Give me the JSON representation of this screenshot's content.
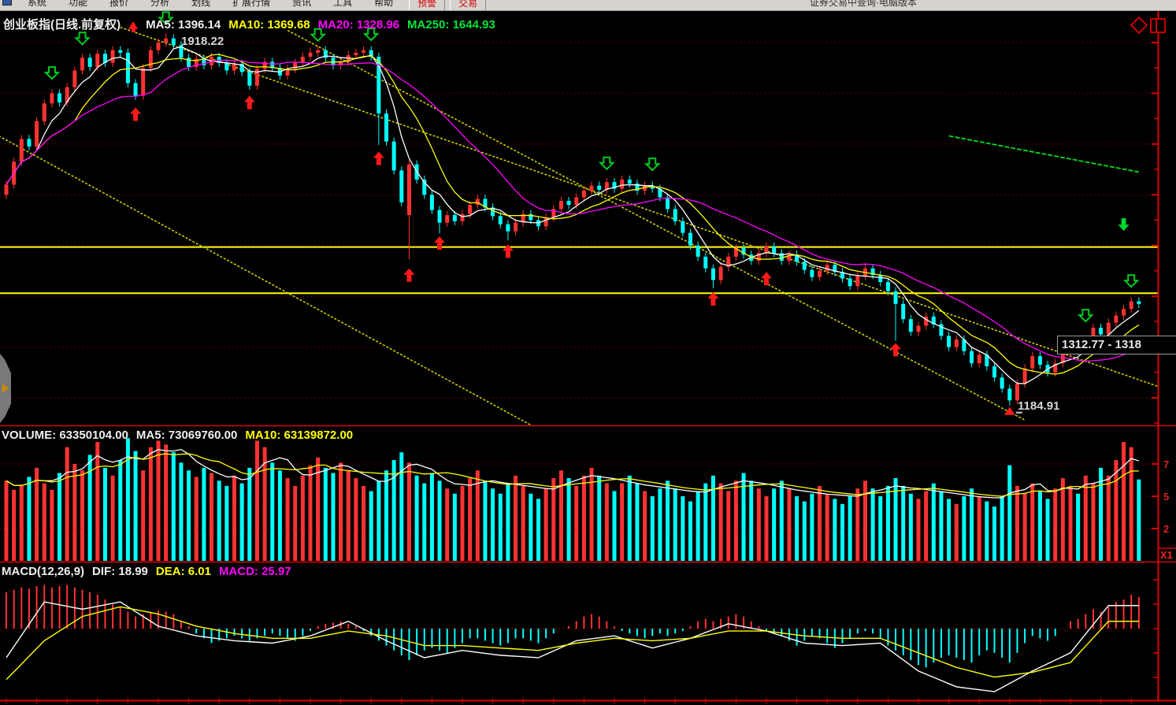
{
  "menu": {
    "items": [
      "系统",
      "功能",
      "报价",
      "分析",
      "划线",
      "扩展行情",
      "资讯",
      "工具",
      "帮助"
    ],
    "hot_items": [
      "预警",
      "交易"
    ],
    "right_text": "证券交易中查询·电脑版本"
  },
  "main_chart": {
    "header": {
      "title": "创业板指(日线.前复权)",
      "ma5": "MA5: 1396.14",
      "ma10": "MA10: 1369.68",
      "ma20": "MA20: 1328.96",
      "ma250": "MA250: 1644.93"
    },
    "peak_label": "1918.22",
    "trough_label": "1184.91",
    "tooltip": "1312.77 - 1318",
    "corner_icons": [
      "diamond-icon",
      "window-split-icon"
    ]
  },
  "volume_pane": {
    "header": {
      "volume": "VOLUME: 63350104.00",
      "ma5": "MA5: 73069760.00",
      "ma10": "MA10: 63139872.00"
    },
    "axis_labels": [
      "7",
      "5",
      "2"
    ],
    "multiplier_label": "X1"
  },
  "macd_pane": {
    "header": {
      "name": "MACD(12,26,9)",
      "dif": "DIF: 18.99",
      "dea": "DEA: 6.01",
      "macd": "MACD: 25.97"
    }
  },
  "colors": {
    "up": "#ff3232",
    "down": "#00ffff",
    "ma5": "#ffffff",
    "ma10": "#ffff00",
    "ma20": "#ff00ff",
    "ma250": "#00dd22",
    "grid": "#c80000",
    "axis": "#dd0000",
    "trend": "#cccc00",
    "support": "#ffff00",
    "signal_buy": "#ff1a1a",
    "signal_sell": "#00cc22"
  },
  "chart_data": {
    "type": "candlestick+volume+macd",
    "title": "创业板指(日线.前复权)",
    "price_axis": {
      "grid_prices": [
        1900,
        1800,
        1700,
        1600,
        1500,
        1400,
        1300,
        1200
      ],
      "labels_visible": false
    },
    "peak": {
      "index": 21,
      "price": 1918.22
    },
    "trough": {
      "index": 132,
      "price": 1184.91
    },
    "support_lines": [
      1497,
      1406
    ],
    "trendlines": [
      {
        "i1": 15,
        "p1": 1930,
        "i2": 152,
        "p2": 1220
      },
      {
        "i1": -1,
        "p1": 1716,
        "i2": 71,
        "p2": 1130
      },
      {
        "i1": 37,
        "p1": 1924,
        "i2": 134,
        "p2": 1156
      }
    ],
    "ma_periods": [
      5,
      10,
      20
    ],
    "ma250_segment": {
      "from_index": 124,
      "from_value": 1716,
      "to_index": 149,
      "to_value": 1644.93
    },
    "candles": {
      "default_wick": 8,
      "opens": [
        1600,
        1620,
        1665,
        1710,
        1695,
        1745,
        1780,
        1800,
        1782,
        1812,
        1845,
        1870,
        1852,
        1878,
        1860,
        1885,
        1880,
        1820,
        1795,
        1850,
        1885,
        1900,
        1908,
        1895,
        1870,
        1852,
        1868,
        1855,
        1872,
        1860,
        1845,
        1858,
        1842,
        1815,
        1848,
        1862,
        1850,
        1835,
        1848,
        1860,
        1872,
        1880,
        1885,
        1870,
        1855,
        1862,
        1875,
        1880,
        1885,
        1872,
        1760,
        1705,
        1648,
        1560,
        1660,
        1630,
        1600,
        1570,
        1545,
        1560,
        1548,
        1562,
        1580,
        1592,
        1575,
        1558,
        1542,
        1528,
        1545,
        1562,
        1550,
        1538,
        1555,
        1572,
        1588,
        1580,
        1595,
        1608,
        1618,
        1610,
        1625,
        1612,
        1630,
        1622,
        1608,
        1618,
        1612,
        1595,
        1572,
        1548,
        1525,
        1500,
        1478,
        1455,
        1432,
        1458,
        1478,
        1495,
        1482,
        1470,
        1485,
        1498,
        1485,
        1470,
        1482,
        1468,
        1452,
        1438,
        1450,
        1462,
        1448,
        1435,
        1420,
        1440,
        1455,
        1442,
        1428,
        1410,
        1385,
        1355,
        1330,
        1342,
        1360,
        1345,
        1322,
        1300,
        1315,
        1292,
        1268,
        1285,
        1262,
        1240,
        1218,
        1195,
        1228,
        1258,
        1282,
        1265,
        1250,
        1268,
        1288,
        1305,
        1292,
        1315,
        1338,
        1325,
        1348,
        1362,
        1375,
        1390
      ],
      "closes": [
        1620,
        1665,
        1710,
        1695,
        1745,
        1780,
        1800,
        1782,
        1812,
        1845,
        1870,
        1852,
        1878,
        1860,
        1885,
        1880,
        1820,
        1795,
        1850,
        1885,
        1900,
        1908,
        1895,
        1870,
        1852,
        1868,
        1855,
        1872,
        1860,
        1845,
        1858,
        1842,
        1815,
        1848,
        1862,
        1850,
        1835,
        1848,
        1860,
        1872,
        1880,
        1885,
        1870,
        1855,
        1862,
        1875,
        1880,
        1885,
        1872,
        1760,
        1705,
        1648,
        1585,
        1660,
        1630,
        1600,
        1570,
        1545,
        1560,
        1548,
        1562,
        1580,
        1592,
        1575,
        1558,
        1542,
        1528,
        1545,
        1562,
        1550,
        1538,
        1555,
        1572,
        1588,
        1580,
        1595,
        1608,
        1618,
        1610,
        1625,
        1612,
        1630,
        1622,
        1608,
        1618,
        1612,
        1595,
        1572,
        1548,
        1525,
        1500,
        1478,
        1455,
        1432,
        1458,
        1478,
        1495,
        1482,
        1470,
        1485,
        1498,
        1485,
        1470,
        1482,
        1468,
        1452,
        1438,
        1450,
        1462,
        1448,
        1435,
        1420,
        1440,
        1455,
        1442,
        1428,
        1410,
        1385,
        1355,
        1330,
        1342,
        1360,
        1345,
        1322,
        1300,
        1315,
        1292,
        1268,
        1285,
        1262,
        1240,
        1218,
        1195,
        1228,
        1258,
        1282,
        1265,
        1250,
        1268,
        1288,
        1305,
        1292,
        1315,
        1338,
        1325,
        1348,
        1362,
        1375,
        1390,
        1385
      ],
      "high_overrides": {
        "21": 1918.22,
        "40": 1890,
        "47": 1893
      },
      "low_overrides": {
        "49": 1698,
        "53": 1473,
        "57": 1524,
        "66": 1510,
        "93": 1416,
        "117": 1312,
        "132": 1184.91
      }
    },
    "volumes_millions": [
      62,
      55,
      58,
      65,
      72,
      60,
      55,
      68,
      88,
      75,
      70,
      82,
      92,
      72,
      66,
      78,
      95,
      85,
      70,
      88,
      93,
      90,
      84,
      76,
      70,
      65,
      72,
      68,
      62,
      58,
      66,
      60,
      72,
      93,
      88,
      76,
      70,
      64,
      58,
      66,
      74,
      80,
      72,
      68,
      76,
      70,
      64,
      58,
      54,
      62,
      70,
      78,
      84,
      76,
      66,
      60,
      68,
      62,
      56,
      52,
      58,
      64,
      70,
      62,
      56,
      52,
      60,
      66,
      58,
      52,
      48,
      56,
      64,
      70,
      64,
      58,
      66,
      72,
      66,
      60,
      54,
      60,
      66,
      60,
      54,
      50,
      56,
      62,
      56,
      50,
      46,
      54,
      60,
      66,
      60,
      54,
      62,
      68,
      62,
      56,
      50,
      56,
      62,
      56,
      50,
      46,
      52,
      58,
      52,
      48,
      44,
      50,
      56,
      62,
      56,
      50,
      58,
      64,
      58,
      52,
      48,
      54,
      60,
      54,
      48,
      44,
      50,
      56,
      50,
      46,
      42,
      50,
      74,
      58,
      52,
      60,
      54,
      48,
      56,
      64,
      58,
      52,
      66,
      60,
      72,
      66,
      78,
      92,
      88,
      63
    ],
    "volume_grid_millions": [
      25,
      50,
      75
    ],
    "macd": {
      "hist": [
        30,
        32,
        34,
        33,
        35,
        36,
        34,
        35,
        36,
        34,
        32,
        30,
        28,
        24,
        20,
        18,
        14,
        10,
        12,
        14,
        15,
        14,
        12,
        6,
        2,
        -4,
        -8,
        -12,
        -10,
        -8,
        -6,
        -8,
        -10,
        -8,
        -6,
        -4,
        -6,
        -8,
        -10,
        -6,
        -2,
        2,
        4,
        5,
        6,
        4,
        2,
        -2,
        -6,
        -10,
        -14,
        -18,
        -22,
        -26,
        -22,
        -18,
        -16,
        -18,
        -20,
        -16,
        -12,
        -8,
        -8,
        -10,
        -12,
        -14,
        -12,
        -8,
        -8,
        -10,
        -12,
        -8,
        -4,
        0,
        2,
        6,
        10,
        12,
        10,
        6,
        2,
        -2,
        -4,
        -6,
        -8,
        -6,
        -4,
        -6,
        -4,
        -2,
        2,
        6,
        8,
        6,
        8,
        10,
        12,
        10,
        6,
        2,
        -2,
        -4,
        -6,
        -10,
        -14,
        -10,
        -6,
        -8,
        -12,
        -16,
        -12,
        -8,
        -4,
        -2,
        -4,
        -8,
        -14,
        -18,
        -22,
        -26,
        -30,
        -32,
        -28,
        -24,
        -22,
        -24,
        -26,
        -28,
        -22,
        -18,
        -20,
        -24,
        -28,
        -20,
        -12,
        -6,
        -8,
        -10,
        -6,
        0,
        6,
        8,
        12,
        16,
        14,
        18,
        22,
        24,
        28,
        26
      ],
      "dif_sampled": {
        "step": 5,
        "values": [
          -24,
          22,
          16,
          22,
          2,
          -6,
          -10,
          -12,
          -6,
          6,
          -10,
          -24,
          -18,
          -22,
          -24,
          -10,
          -6,
          -16,
          -8,
          4,
          -2,
          -12,
          -14,
          -12,
          -35,
          -48,
          -52,
          -35,
          -20,
          19,
          19
        ]
      },
      "dea_sampled": {
        "step": 5,
        "values": [
          -42,
          -10,
          10,
          18,
          12,
          2,
          -4,
          -8,
          -8,
          -2,
          -6,
          -14,
          -14,
          -16,
          -18,
          -12,
          -8,
          -10,
          -8,
          -2,
          -2,
          -6,
          -8,
          -8,
          -20,
          -32,
          -40,
          -36,
          -28,
          6,
          6
        ]
      },
      "last_values": {
        "dif": 18.99,
        "dea": 6.01,
        "macd": 25.97
      }
    },
    "signals": {
      "buy_arrows": [
        {
          "i": 17,
          "p": 1772
        },
        {
          "i": 32,
          "p": 1795
        },
        {
          "i": 49,
          "p": 1685
        },
        {
          "i": 53,
          "p": 1455
        },
        {
          "i": 57,
          "p": 1518
        },
        {
          "i": 66,
          "p": 1502
        },
        {
          "i": 93,
          "p": 1408
        },
        {
          "i": 100,
          "p": 1448
        },
        {
          "i": 117,
          "p": 1308
        }
      ],
      "sell_arrows": [
        {
          "i": 6,
          "p": 1830
        },
        {
          "i": 10,
          "p": 1898
        },
        {
          "i": 21,
          "p": 1938
        },
        {
          "i": 41,
          "p": 1905
        },
        {
          "i": 48,
          "p": 1906
        },
        {
          "i": 79,
          "p": 1652
        },
        {
          "i": 85,
          "p": 1650
        },
        {
          "i": 142,
          "p": 1352
        },
        {
          "i": 148,
          "p": 1420
        }
      ],
      "alert_down_arrow": {
        "i": 147,
        "p": 1532
      }
    }
  }
}
